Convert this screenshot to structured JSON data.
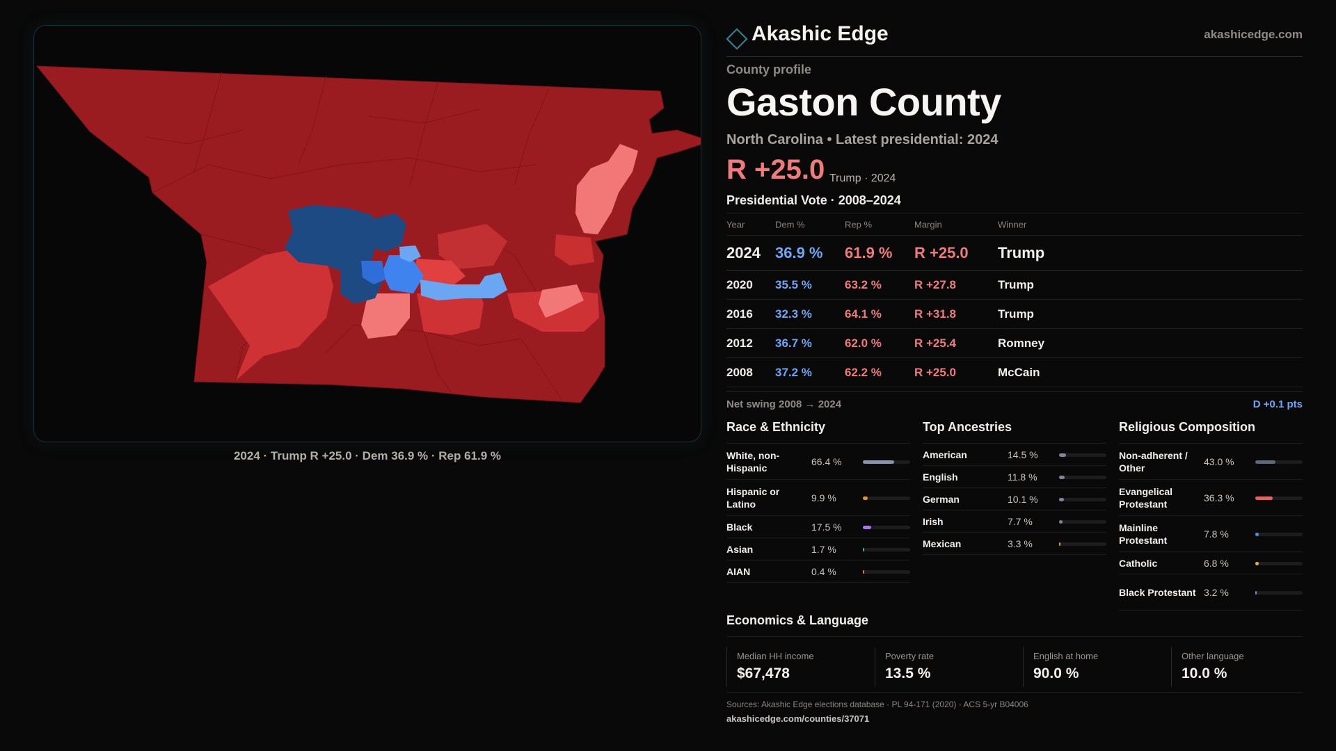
{
  "brand": {
    "name": "Akashic Edge",
    "url": "akashicedge.com",
    "icon": "diamond-outline-icon"
  },
  "profile": {
    "kicker": "County profile",
    "county": "Gaston County",
    "subtitle": "North Carolina • Latest presidential: 2024",
    "margin": "R +25.0",
    "margin_note": "Trump · 2024"
  },
  "vote_table": {
    "title": "Presidential Vote · 2008–2024",
    "headers": {
      "year": "Year",
      "dem": "Dem %",
      "rep": "Rep %",
      "margin": "Margin",
      "winner": "Winner"
    },
    "rows": [
      {
        "year": "2024",
        "dem": "36.9 %",
        "rep": "61.9 %",
        "margin": "R +25.0",
        "winner": "Trump"
      },
      {
        "year": "2020",
        "dem": "35.5 %",
        "rep": "63.2 %",
        "margin": "R +27.8",
        "winner": "Trump"
      },
      {
        "year": "2016",
        "dem": "32.3 %",
        "rep": "64.1 %",
        "margin": "R +31.8",
        "winner": "Trump"
      },
      {
        "year": "2012",
        "dem": "36.7 %",
        "rep": "62.0 %",
        "margin": "R +25.4",
        "winner": "Romney"
      },
      {
        "year": "2008",
        "dem": "37.2 %",
        "rep": "62.2 %",
        "margin": "R +25.0",
        "winner": "McCain"
      }
    ]
  },
  "swing": {
    "label": "Net swing 2008 → 2024",
    "value": "D +0.1 pts"
  },
  "race": {
    "title": "Race & Ethnicity",
    "items": [
      {
        "label": "White, non-Hispanic",
        "pct": "66.4 %",
        "value": 66.4,
        "color": "#8a94a8"
      },
      {
        "label": "Hispanic or Latino",
        "pct": "9.9 %",
        "value": 9.9,
        "color": "#e0952f"
      },
      {
        "label": "Black",
        "pct": "17.5 %",
        "value": 17.5,
        "color": "#a27ae8"
      },
      {
        "label": "Asian",
        "pct": "1.7 %",
        "value": 1.7,
        "color": "#2fb89a"
      },
      {
        "label": "AIAN",
        "pct": "0.4 %",
        "value": 0.4,
        "color": "#e07b3a"
      }
    ]
  },
  "ancestry": {
    "title": "Top Ancestries",
    "items": [
      {
        "label": "American",
        "pct": "14.5 %",
        "value": 14.5,
        "color": "#7d8596"
      },
      {
        "label": "English",
        "pct": "11.8 %",
        "value": 11.8,
        "color": "#7d8596"
      },
      {
        "label": "German",
        "pct": "10.1 %",
        "value": 10.1,
        "color": "#7d8596"
      },
      {
        "label": "Irish",
        "pct": "7.7 %",
        "value": 7.7,
        "color": "#7d8596"
      },
      {
        "label": "Mexican",
        "pct": "3.3 %",
        "value": 3.3,
        "color": "#e0952f"
      }
    ]
  },
  "religion": {
    "title": "Religious Composition",
    "items": [
      {
        "label": "Non-adherent / Other",
        "pct": "43.0 %",
        "value": 43.0,
        "color": "#5f6878"
      },
      {
        "label": "Evangelical Protestant",
        "pct": "36.3 %",
        "value": 36.3,
        "color": "#e06464"
      },
      {
        "label": "Mainline Protestant",
        "pct": "7.8 %",
        "value": 7.8,
        "color": "#5a8fe0"
      },
      {
        "label": "Catholic",
        "pct": "6.8 %",
        "value": 6.8,
        "color": "#e0b53a"
      },
      {
        "label": "Black Protestant",
        "pct": "3.2 %",
        "value": 3.2,
        "color": "#8a7ae0"
      }
    ]
  },
  "economics": {
    "title": "Economics & Language",
    "cells": [
      {
        "label": "Median HH income",
        "value": "$67,478"
      },
      {
        "label": "Poverty rate",
        "value": "13.5 %"
      },
      {
        "label": "English at home",
        "value": "90.0 %"
      },
      {
        "label": "Other language",
        "value": "10.0 %"
      }
    ]
  },
  "sources": "Sources: Akashic Edge elections database · PL 94-171 (2020) · ACS 5-yr B04006",
  "page_url": "akashicedge.com/counties/37071",
  "map": {
    "caption": "2024 · Trump R +25.0 · Dem 36.9 % · Rep 61.9 %",
    "colors": {
      "strong_r": "#9b1c20",
      "lean_r": "#cf3235",
      "tilt_r": "#f27878",
      "strong_d": "#1e4a84",
      "lean_d": "#3f84ee",
      "tilt_d": "#6aa6f2"
    }
  }
}
